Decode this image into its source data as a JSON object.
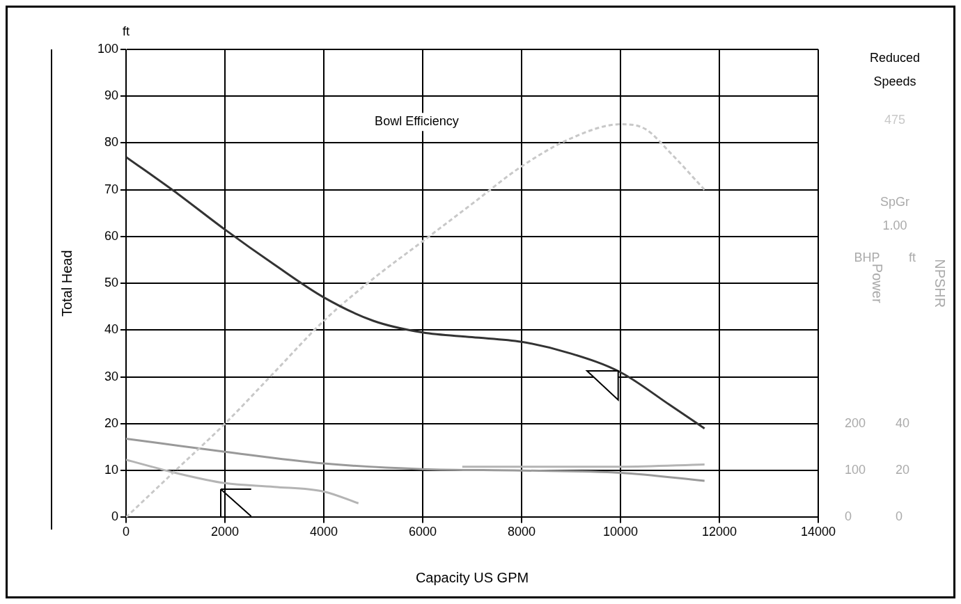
{
  "chart_data": {
    "type": "line",
    "xlabel": "Capacity US GPM",
    "ylabel": "Total Head",
    "y2label": "Power",
    "y3label": "NPSHR",
    "xlim": [
      0,
      14000
    ],
    "xticks": [
      0,
      2000,
      4000,
      6000,
      8000,
      10000,
      12000,
      14000
    ],
    "ylim": [
      0,
      100
    ],
    "yticks": [
      0,
      10,
      20,
      30,
      40,
      50,
      60,
      70,
      80,
      90,
      100
    ],
    "y2lim": [
      0,
      1000
    ],
    "y2ticks": [
      0,
      100,
      200
    ],
    "y3lim": [
      0,
      200
    ],
    "y3ticks": [
      0,
      20,
      40
    ],
    "grid": true,
    "legend": false,
    "marker": "none",
    "series": [
      {
        "color": "#333333",
        "line_style": "solid",
        "axis": "y",
        "x": [
          0,
          1000,
          2000,
          3000,
          4000,
          5000,
          6000,
          7000,
          8000,
          9000,
          10000,
          11000,
          11700
        ],
        "values": [
          77,
          69.5,
          61.5,
          54,
          47,
          42,
          39.5,
          38.5,
          37.5,
          35,
          31,
          24,
          19
        ]
      },
      {
        "color": "#c8c8c8",
        "line_style": "dashed",
        "axis": "y",
        "x": [
          0,
          1000,
          2000,
          3000,
          4000,
          5000,
          6000,
          7000,
          8000,
          9000,
          10000,
          10500,
          11000,
          11700
        ],
        "values": [
          0,
          10,
          20,
          31,
          42,
          51,
          59,
          67,
          75,
          81,
          84,
          83,
          78,
          70
        ]
      },
      {
        "color": "#999999",
        "line_style": "solid",
        "axis": "y2",
        "x": [
          0,
          2000,
          4000,
          6000,
          8000,
          10000,
          11700
        ],
        "values": [
          168,
          140,
          115,
          103,
          100,
          95,
          78
        ]
      },
      {
        "color": "#b4b4b4",
        "line_style": "solid",
        "axis": "y3",
        "x": [
          0,
          1000,
          2000,
          3000,
          4000,
          4700
        ],
        "values": [
          24.6,
          19,
          14.6,
          13,
          11,
          6
        ]
      },
      {
        "color": "#b4b4b4",
        "line_style": "solid",
        "axis": "y3",
        "x": [
          6800,
          8000,
          10000,
          11700
        ],
        "values": [
          21.6,
          21.6,
          21.6,
          22.6
        ]
      }
    ],
    "annotations": [
      "ft",
      "Bowl Efficiency",
      "Reduced Speeds",
      "475",
      "SpGr",
      "1.00",
      "BHP",
      "ft"
    ]
  }
}
